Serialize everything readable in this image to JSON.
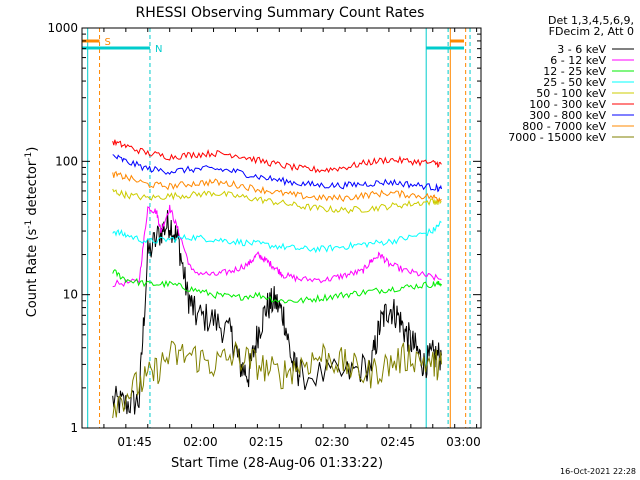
{
  "chart_data": {
    "type": "line",
    "title": "RHESSI Observing Summary Count Rates",
    "xlabel": "Start Time (28-Aug-06 01:33:22)",
    "ylabel_main": "Count Rate (s",
    "ylabel_sup1": "-1",
    "ylabel_mid": " detector",
    "ylabel_sup2": "-1",
    "ylabel_end": ")",
    "yscale": "log",
    "ylim": [
      1,
      1000
    ],
    "xlim_minutes_from_0133": [
      0,
      91
    ],
    "x_ticks": [
      {
        "label": "01:45",
        "t": 12
      },
      {
        "label": "02:00",
        "t": 27
      },
      {
        "label": "02:15",
        "t": 42
      },
      {
        "label": "02:30",
        "t": 57
      },
      {
        "label": "02:45",
        "t": 72
      },
      {
        "label": "03:00",
        "t": 87
      }
    ],
    "y_ticks": [
      {
        "label": "1",
        "v": 1
      },
      {
        "label": "10",
        "v": 10
      },
      {
        "label": "100",
        "v": 100
      },
      {
        "label": "1000",
        "v": 1000
      }
    ],
    "legend_header": [
      "Det 1,3,4,5,6,9,",
      "FDecim 2, Att 0"
    ],
    "series": [
      {
        "name": "3 - 6 keV",
        "color": "#000000",
        "points": [
          [
            7,
            1.6
          ],
          [
            10,
            1.5
          ],
          [
            13,
            1.6
          ],
          [
            15,
            20
          ],
          [
            18,
            30
          ],
          [
            20,
            35
          ],
          [
            22,
            25
          ],
          [
            24,
            10
          ],
          [
            26,
            7
          ],
          [
            30,
            6.5
          ],
          [
            34,
            5
          ],
          [
            36,
            3
          ],
          [
            38,
            2.5
          ],
          [
            40,
            5
          ],
          [
            42,
            8
          ],
          [
            44,
            9
          ],
          [
            46,
            7
          ],
          [
            48,
            3
          ],
          [
            50,
            2.5
          ],
          [
            60,
            2.5
          ],
          [
            66,
            3
          ],
          [
            68,
            6
          ],
          [
            70,
            8
          ],
          [
            72,
            7
          ],
          [
            74,
            5
          ],
          [
            76,
            4
          ],
          [
            78,
            3
          ],
          [
            80,
            3.5
          ],
          [
            82,
            3.5
          ]
        ]
      },
      {
        "name": "6 - 12 keV",
        "color": "#ff00ff",
        "points": [
          [
            7,
            12
          ],
          [
            13,
            12.5
          ],
          [
            15,
            45
          ],
          [
            17,
            42
          ],
          [
            18,
            30
          ],
          [
            20,
            45
          ],
          [
            22,
            30
          ],
          [
            25,
            15
          ],
          [
            30,
            14
          ],
          [
            34,
            15
          ],
          [
            38,
            17
          ],
          [
            40,
            20
          ],
          [
            42,
            18
          ],
          [
            44,
            16
          ],
          [
            46,
            14
          ],
          [
            50,
            13
          ],
          [
            56,
            13
          ],
          [
            60,
            14
          ],
          [
            64,
            15
          ],
          [
            66,
            18
          ],
          [
            68,
            20
          ],
          [
            70,
            17
          ],
          [
            74,
            15
          ],
          [
            78,
            14
          ],
          [
            82,
            13
          ]
        ]
      },
      {
        "name": "12 - 25 keV",
        "color": "#00ee00",
        "points": [
          [
            7,
            15
          ],
          [
            10,
            13
          ],
          [
            15,
            12
          ],
          [
            20,
            12
          ],
          [
            25,
            11
          ],
          [
            30,
            10
          ],
          [
            35,
            9.5
          ],
          [
            40,
            10
          ],
          [
            45,
            9
          ],
          [
            50,
            9
          ],
          [
            55,
            9.5
          ],
          [
            60,
            10
          ],
          [
            65,
            10.5
          ],
          [
            70,
            11
          ],
          [
            75,
            11.5
          ],
          [
            80,
            12
          ],
          [
            82,
            12
          ]
        ]
      },
      {
        "name": "25 - 50 keV",
        "color": "#00ffff",
        "points": [
          [
            7,
            30
          ],
          [
            10,
            28
          ],
          [
            15,
            25
          ],
          [
            20,
            26
          ],
          [
            25,
            27
          ],
          [
            30,
            26
          ],
          [
            35,
            25
          ],
          [
            40,
            24
          ],
          [
            45,
            23
          ],
          [
            50,
            22
          ],
          [
            55,
            22
          ],
          [
            60,
            23
          ],
          [
            65,
            24
          ],
          [
            70,
            25
          ],
          [
            75,
            27
          ],
          [
            80,
            30
          ],
          [
            82,
            35
          ]
        ]
      },
      {
        "name": "50 - 100 keV",
        "color": "#cccc00",
        "points": [
          [
            7,
            60
          ],
          [
            10,
            56
          ],
          [
            15,
            53
          ],
          [
            20,
            55
          ],
          [
            25,
            56
          ],
          [
            30,
            58
          ],
          [
            35,
            55
          ],
          [
            40,
            52
          ],
          [
            45,
            49
          ],
          [
            50,
            46
          ],
          [
            55,
            44
          ],
          [
            60,
            43
          ],
          [
            65,
            44
          ],
          [
            70,
            46
          ],
          [
            75,
            48
          ],
          [
            80,
            50
          ],
          [
            82,
            50
          ]
        ]
      },
      {
        "name": "100 - 300 keV",
        "color": "#ff0000",
        "points": [
          [
            7,
            140
          ],
          [
            10,
            130
          ],
          [
            15,
            115
          ],
          [
            20,
            108
          ],
          [
            25,
            112
          ],
          [
            30,
            115
          ],
          [
            35,
            112
          ],
          [
            40,
            102
          ],
          [
            45,
            94
          ],
          [
            50,
            88
          ],
          [
            55,
            86
          ],
          [
            60,
            90
          ],
          [
            65,
            98
          ],
          [
            70,
            103
          ],
          [
            75,
            100
          ],
          [
            80,
            97
          ],
          [
            82,
            95
          ]
        ]
      },
      {
        "name": "300 - 800 keV",
        "color": "#0000ff",
        "points": [
          [
            7,
            110
          ],
          [
            10,
            100
          ],
          [
            15,
            88
          ],
          [
            20,
            84
          ],
          [
            25,
            87
          ],
          [
            30,
            88
          ],
          [
            35,
            84
          ],
          [
            40,
            77
          ],
          [
            45,
            72
          ],
          [
            50,
            68
          ],
          [
            55,
            66
          ],
          [
            60,
            66
          ],
          [
            65,
            68
          ],
          [
            70,
            70
          ],
          [
            75,
            67
          ],
          [
            80,
            64
          ],
          [
            82,
            62
          ]
        ]
      },
      {
        "name": "800 - 7000 keV",
        "color": "#ff8800",
        "points": [
          [
            7,
            80
          ],
          [
            10,
            76
          ],
          [
            15,
            67
          ],
          [
            20,
            65
          ],
          [
            25,
            68
          ],
          [
            30,
            70
          ],
          [
            35,
            67
          ],
          [
            40,
            62
          ],
          [
            45,
            58
          ],
          [
            50,
            55
          ],
          [
            55,
            53
          ],
          [
            60,
            53
          ],
          [
            65,
            56
          ],
          [
            70,
            58
          ],
          [
            75,
            56
          ],
          [
            80,
            54
          ],
          [
            82,
            52
          ]
        ]
      },
      {
        "name": "7000 - 15000 keV",
        "color": "#808000",
        "points": [
          [
            7,
            1.5
          ],
          [
            12,
            2
          ],
          [
            16,
            2.5
          ],
          [
            20,
            3.5
          ],
          [
            25,
            3.5
          ],
          [
            30,
            3
          ],
          [
            35,
            3.5
          ],
          [
            40,
            3
          ],
          [
            45,
            2.5
          ],
          [
            50,
            3
          ],
          [
            55,
            3.5
          ],
          [
            60,
            3
          ],
          [
            65,
            2.5
          ],
          [
            70,
            3
          ],
          [
            75,
            3.5
          ],
          [
            80,
            3
          ],
          [
            82,
            3
          ]
        ]
      }
    ],
    "annotations": [
      {
        "label": "S",
        "color": "#ff8800"
      },
      {
        "label": "N",
        "color": "#00cccc"
      }
    ],
    "timestamp": "16-Oct-2021 22:28"
  }
}
